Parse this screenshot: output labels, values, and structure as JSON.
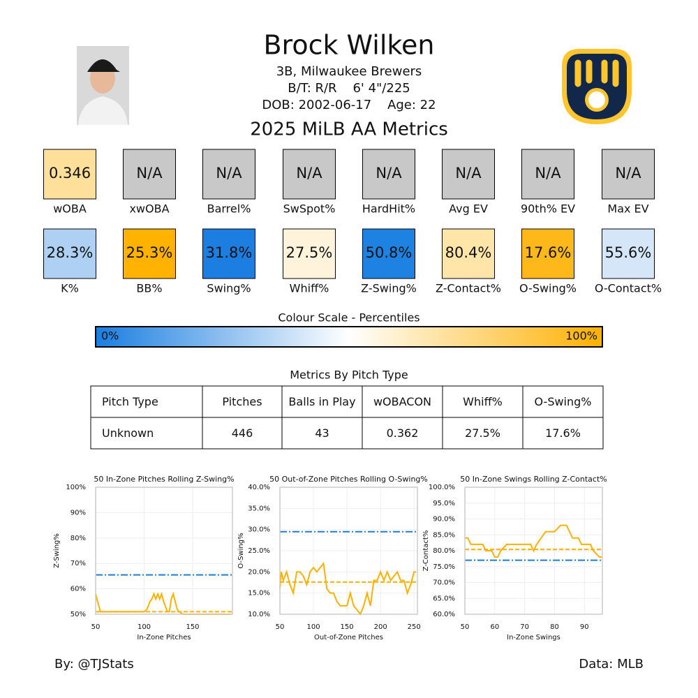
{
  "header": {
    "name": "Brock Wilken",
    "position": "3B, Milwaukee Brewers",
    "bio": "B/T: R/R    6' 4\"/225",
    "dob": "DOB: 2002-06-17    Age: 22",
    "subtitle": "2025 MiLB AA Metrics"
  },
  "metrics": [
    {
      "label": "wOBA",
      "value": "0.346",
      "color": "#ffe09a"
    },
    {
      "label": "xwOBA",
      "value": "N/A",
      "color": "#c8c8c8"
    },
    {
      "label": "Barrel%",
      "value": "N/A",
      "color": "#c8c8c8"
    },
    {
      "label": "SwSpot%",
      "value": "N/A",
      "color": "#c8c8c8"
    },
    {
      "label": "HardHit%",
      "value": "N/A",
      "color": "#c8c8c8"
    },
    {
      "label": "Avg EV",
      "value": "N/A",
      "color": "#c8c8c8"
    },
    {
      "label": "90th% EV",
      "value": "N/A",
      "color": "#c8c8c8"
    },
    {
      "label": "Max EV",
      "value": "N/A",
      "color": "#c8c8c8"
    },
    {
      "label": "K%",
      "value": "28.3%",
      "color": "#aed0f2"
    },
    {
      "label": "BB%",
      "value": "25.3%",
      "color": "#ffb300"
    },
    {
      "label": "Swing%",
      "value": "31.8%",
      "color": "#1b7ee0"
    },
    {
      "label": "Whiff%",
      "value": "27.5%",
      "color": "#fff3dc"
    },
    {
      "label": "Z-Swing%",
      "value": "50.8%",
      "color": "#1e82e2"
    },
    {
      "label": "Z-Contact%",
      "value": "80.4%",
      "color": "#ffe5a8"
    },
    {
      "label": "O-Swing%",
      "value": "17.6%",
      "color": "#ffb81a"
    },
    {
      "label": "O-Contact%",
      "value": "55.6%",
      "color": "#d4e6f8"
    }
  ],
  "scale": {
    "title": "Colour Scale - Percentiles",
    "min_label": "0%",
    "max_label": "100%",
    "colors": [
      "#1a7ee0",
      "#ffffff",
      "#ffb000"
    ]
  },
  "table": {
    "title": "Metrics By Pitch Type",
    "columns": [
      "Pitch Type",
      "Pitches",
      "Balls in Play",
      "wOBACON",
      "Whiff%",
      "O-Swing%"
    ],
    "rows": [
      [
        "Unknown",
        "446",
        "43",
        "0.362",
        "27.5%",
        "17.6%"
      ]
    ]
  },
  "chart_data": [
    {
      "type": "line",
      "title": "50 In-Zone Pitches Rolling Z-Swing%",
      "xlabel": "In-Zone Pitches",
      "ylabel": "Z-Swing%",
      "x": [
        50,
        52,
        55,
        60,
        70,
        80,
        90,
        100,
        103,
        106,
        108,
        110,
        112,
        114,
        116,
        118,
        120,
        122,
        124,
        126,
        128,
        130,
        132,
        134,
        136,
        140,
        150,
        160,
        170,
        180,
        190
      ],
      "values": [
        58,
        55,
        51,
        51,
        51,
        51,
        51,
        51,
        52,
        55,
        56,
        58,
        56,
        58,
        56,
        58,
        55,
        53,
        51,
        51,
        56,
        58,
        55,
        52,
        51,
        50,
        50,
        50,
        50,
        50,
        50
      ],
      "color": "#ffb000",
      "xlim": [
        50,
        191
      ],
      "ylim": [
        50,
        100
      ],
      "xticks": [
        50,
        100,
        150
      ],
      "yticks": [
        {
          "value": 50,
          "label": "50%"
        },
        {
          "value": 60,
          "label": "60%"
        },
        {
          "value": 70,
          "label": "70%"
        },
        {
          "value": 80,
          "label": "80%"
        },
        {
          "value": 90,
          "label": "90%"
        },
        {
          "value": 100,
          "label": "100%"
        }
      ],
      "reference_lines": [
        {
          "value": 65.5,
          "color": "#1a7ed6",
          "style": "dashdot"
        },
        {
          "value": 51,
          "color": "#ffb000",
          "style": "dashed"
        }
      ],
      "grid": true
    },
    {
      "type": "line",
      "title": "50 Out-of-Zone Pitches Rolling O-Swing%",
      "xlabel": "Out-of-Zone Pitches",
      "ylabel": "O-Swing%",
      "x": [
        50,
        52,
        55,
        60,
        65,
        70,
        75,
        80,
        85,
        90,
        95,
        100,
        105,
        110,
        115,
        120,
        125,
        130,
        135,
        140,
        145,
        150,
        155,
        160,
        165,
        170,
        175,
        180,
        185,
        190,
        195,
        200,
        205,
        210,
        215,
        220,
        225,
        230,
        235,
        240,
        245,
        250,
        253
      ],
      "values": [
        16,
        20,
        18,
        20,
        17,
        15,
        20,
        20,
        19,
        17,
        20,
        21,
        20,
        21,
        22,
        16,
        15,
        15,
        13,
        12,
        12,
        12,
        15,
        12,
        11,
        10,
        12,
        15,
        12,
        18,
        18,
        20,
        18,
        20,
        18,
        19,
        20,
        18,
        18,
        15,
        17,
        20,
        20
      ],
      "color": "#ffb000",
      "xlim": [
        50,
        255
      ],
      "ylim": [
        10,
        40
      ],
      "xticks": [
        50,
        100,
        150,
        200,
        250
      ],
      "yticks": [
        {
          "value": 10,
          "label": "10.0%"
        },
        {
          "value": 15,
          "label": "15.0%"
        },
        {
          "value": 20,
          "label": "20.0%"
        },
        {
          "value": 25,
          "label": "25.0%"
        },
        {
          "value": 30,
          "label": "30.0%"
        },
        {
          "value": 35,
          "label": "35.0%"
        },
        {
          "value": 40,
          "label": "40.0%"
        }
      ],
      "reference_lines": [
        {
          "value": 29.5,
          "color": "#1a7ed6",
          "style": "dashdot"
        },
        {
          "value": 17.6,
          "color": "#ffb000",
          "style": "dashed"
        }
      ],
      "grid": true
    },
    {
      "type": "line",
      "title": "50 In-Zone Swings Rolling Z-Contact%",
      "xlabel": "In-Zone Swings",
      "ylabel": "Z-Contact%",
      "x": [
        50,
        51,
        52,
        56,
        57,
        59,
        60,
        61,
        62,
        64,
        72,
        73,
        74,
        77,
        80,
        82,
        84,
        85,
        86,
        88,
        89,
        92,
        93,
        95,
        96
      ],
      "values": [
        84,
        84,
        82,
        82,
        80,
        80,
        78,
        78,
        80,
        82,
        82,
        80,
        82,
        86,
        86,
        88,
        88,
        86,
        84,
        84,
        82,
        82,
        80,
        78,
        78
      ],
      "color": "#ffb000",
      "xlim": [
        50,
        96
      ],
      "ylim": [
        60,
        100
      ],
      "xticks": [
        50,
        60,
        70,
        80,
        90
      ],
      "yticks": [
        {
          "value": 60,
          "label": "60.0%"
        },
        {
          "value": 65,
          "label": "65.0%"
        },
        {
          "value": 70,
          "label": "70.0%"
        },
        {
          "value": 75,
          "label": "75.0%"
        },
        {
          "value": 80,
          "label": "80.0%"
        },
        {
          "value": 85,
          "label": "85.0%"
        },
        {
          "value": 90,
          "label": "90.0%"
        },
        {
          "value": 95,
          "label": "95.0%"
        },
        {
          "value": 100,
          "label": "100.0%"
        }
      ],
      "reference_lines": [
        {
          "value": 77,
          "color": "#1a7ed6",
          "style": "dashdot"
        },
        {
          "value": 80.4,
          "color": "#ffb000",
          "style": "dashed"
        }
      ],
      "grid": true
    }
  ],
  "footer": {
    "left": "By: @TJStats",
    "right": "Data: MLB"
  }
}
